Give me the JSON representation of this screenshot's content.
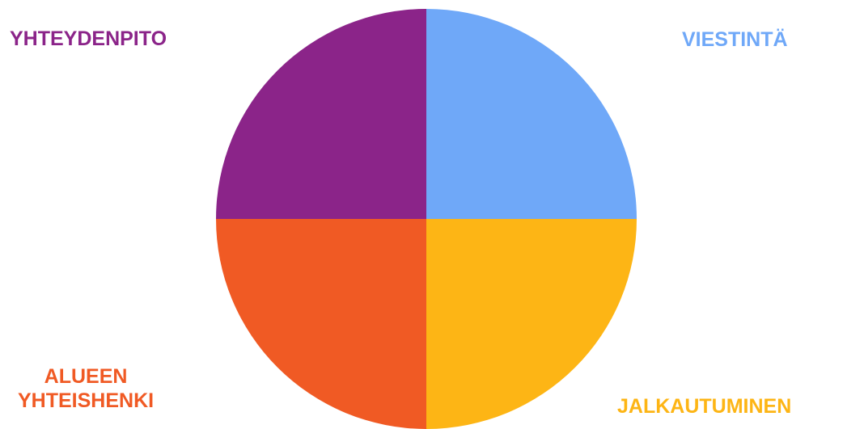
{
  "chart_data": {
    "type": "pie",
    "title": "",
    "slices": [
      {
        "label_lines": [
          "VIESTINTÄ"
        ],
        "value": 25,
        "color": "#6FA8F8"
      },
      {
        "label_lines": [
          "JALKAUTUMINEN"
        ],
        "value": 25,
        "color": "#FDB515"
      },
      {
        "label_lines": [
          "ALUEEN",
          "YHTEISHENKI"
        ],
        "value": 25,
        "color": "#F05A24"
      },
      {
        "label_lines": [
          "YHTEYDENPITO"
        ],
        "value": 25,
        "color": "#8B2489"
      }
    ],
    "legend": "none"
  }
}
